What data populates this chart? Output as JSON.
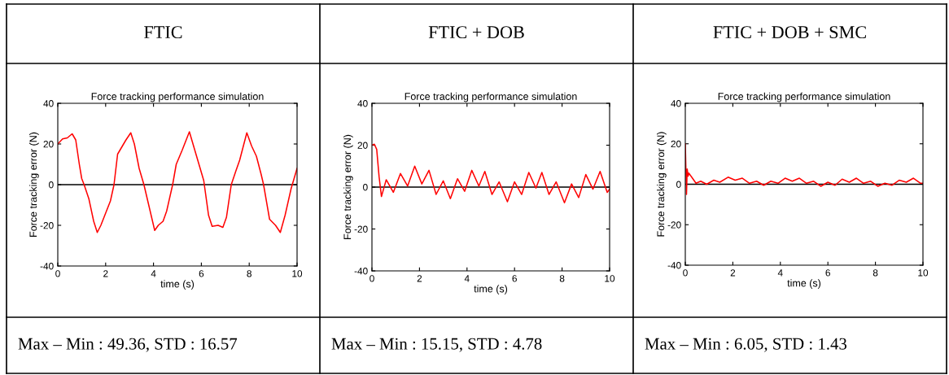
{
  "chart_data": [
    {
      "type": "line",
      "title": "FTIC",
      "subtitle": "Force tracking performance simulation",
      "xlabel": "time (s)",
      "ylabel": "Force tracking error (N)",
      "xlim": [
        0,
        10
      ],
      "ylim": [
        -40,
        40
      ],
      "xticks": [
        0,
        2,
        4,
        6,
        8,
        10
      ],
      "yticks": [
        -40,
        -20,
        0,
        20,
        40
      ],
      "ref_lines": [
        {
          "axis": "y",
          "value": 0,
          "color": "#000000"
        }
      ],
      "annotations": [
        "Max – Min : 49.36, STD : 16.57"
      ],
      "series": [
        {
          "color": "#ff0000",
          "x": [
            0,
            0.2,
            0.4,
            0.6,
            0.75,
            0.9,
            1.0,
            1.1,
            1.3,
            1.5,
            1.65,
            1.8,
            2.0,
            2.2,
            2.35,
            2.5,
            2.7,
            2.85,
            3.05,
            3.2,
            3.4,
            3.6,
            3.8,
            4.05,
            4.2,
            4.4,
            4.55,
            4.8,
            4.95,
            5.2,
            5.5,
            5.7,
            5.9,
            6.1,
            6.3,
            6.45,
            6.7,
            6.9,
            7.05,
            7.25,
            7.45,
            7.6,
            7.9,
            8.1,
            8.3,
            8.5,
            8.6,
            8.85,
            9.1,
            9.3,
            9.5,
            9.75,
            10
          ],
          "values": [
            20,
            22.5,
            23,
            25,
            22,
            10,
            3,
            0,
            -7,
            -18,
            -23.5,
            -20,
            -14,
            -8,
            0,
            15,
            19,
            22,
            25.5,
            20,
            8,
            0,
            -10,
            -22.5,
            -20,
            -18,
            -13,
            0,
            10,
            17,
            26,
            18,
            10,
            2,
            -15,
            -20.5,
            -20,
            -21,
            -16,
            0,
            7,
            12,
            25.5,
            19,
            14,
            5,
            0,
            -17,
            -20,
            -23.5,
            -15,
            -2,
            8
          ]
        }
      ]
    },
    {
      "type": "line",
      "title": "FTIC + DOB",
      "subtitle": "Force tracking performance simulation",
      "xlabel": "time (s)",
      "ylabel": "Force tracking error (N)",
      "xlim": [
        0,
        10
      ],
      "ylim": [
        -40,
        40
      ],
      "xticks": [
        0,
        2,
        4,
        6,
        8,
        10
      ],
      "yticks": [
        -40,
        -20,
        0,
        20,
        40
      ],
      "ref_lines": [
        {
          "axis": "y",
          "value": 0,
          "color": "#000000"
        }
      ],
      "annotations": [
        "Max – Min : 15.15, STD : 4.78"
      ],
      "series": [
        {
          "color": "#ff0000",
          "x": [
            0,
            0.1,
            0.2,
            0.3,
            0.4,
            0.6,
            0.9,
            1.2,
            1.5,
            1.8,
            2.1,
            2.4,
            2.7,
            3.0,
            3.3,
            3.6,
            3.9,
            4.2,
            4.5,
            4.75,
            5.05,
            5.35,
            5.7,
            6.0,
            6.3,
            6.6,
            6.9,
            7.15,
            7.45,
            7.75,
            8.1,
            8.4,
            8.7,
            9.0,
            9.3,
            9.6,
            9.9,
            10
          ],
          "values": [
            20,
            20.5,
            18,
            5,
            -4.5,
            3.5,
            -2.5,
            6.5,
            0.5,
            10,
            1.5,
            8,
            -3.5,
            3,
            -5.5,
            4,
            -2,
            8,
            0.5,
            7.5,
            -3.5,
            2.5,
            -7,
            2.5,
            -3.5,
            7,
            -0.5,
            7,
            -3.5,
            2.5,
            -7.5,
            1.5,
            -5,
            6,
            -1,
            7.5,
            -2.5,
            -1
          ]
        }
      ]
    },
    {
      "type": "line",
      "title": "FTIC + DOB + SMC",
      "subtitle": "Force tracking performance simulation",
      "xlabel": "time (s)",
      "ylabel": "Force tracking error (N)",
      "xlim": [
        0,
        10
      ],
      "ylim": [
        -40,
        40
      ],
      "xticks": [
        0,
        2,
        4,
        6,
        8,
        10
      ],
      "yticks": [
        -40,
        -20,
        0,
        20,
        40
      ],
      "ref_lines": [
        {
          "axis": "y",
          "value": 0,
          "color": "#000000"
        }
      ],
      "annotations": [
        "Max – Min : 6.05, STD : 1.43"
      ],
      "series": [
        {
          "color": "#ff0000",
          "x": [
            0,
            0.05,
            0.08,
            0.12,
            0.15,
            0.3,
            0.45,
            0.65,
            0.9,
            1.2,
            1.45,
            1.8,
            2.1,
            2.4,
            2.7,
            3.0,
            3.3,
            3.6,
            3.9,
            4.2,
            4.5,
            4.8,
            5.1,
            5.4,
            5.7,
            6.0,
            6.3,
            6.6,
            6.9,
            7.2,
            7.5,
            7.8,
            8.1,
            8.4,
            8.7,
            9.0,
            9.3,
            9.6,
            9.9,
            10
          ],
          "values": [
            20,
            -5,
            7.5,
            4,
            5.5,
            3,
            0.5,
            1.5,
            0,
            2,
            1,
            3.5,
            2,
            3,
            0.5,
            1.5,
            -0.5,
            1.5,
            0.5,
            3,
            1.5,
            3,
            0.5,
            1.5,
            -1,
            1,
            -0.5,
            2.5,
            1,
            3,
            0.5,
            1.5,
            -1,
            0.5,
            -0.5,
            2,
            1,
            3,
            0.5,
            0.5
          ]
        }
      ]
    }
  ]
}
